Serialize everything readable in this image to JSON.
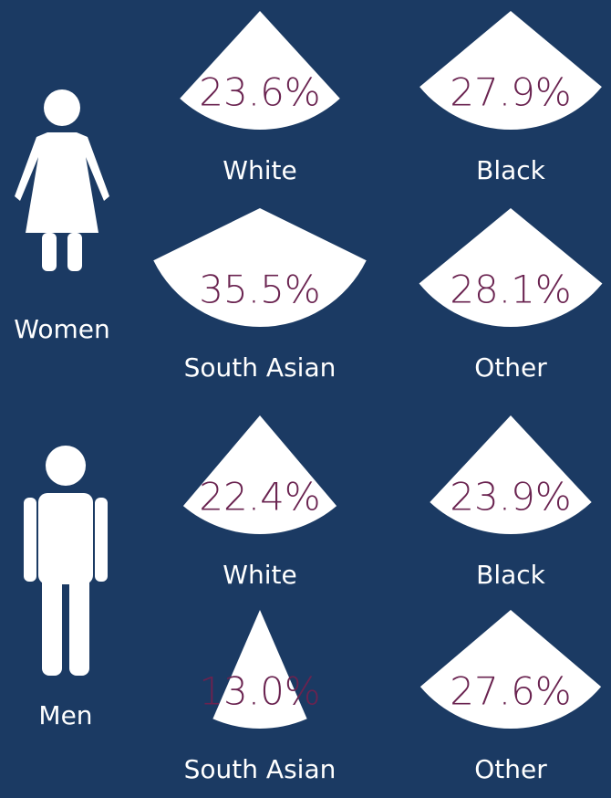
{
  "chart_data": {
    "type": "wedge",
    "groups": [
      {
        "name": "Women",
        "categories": [
          "White",
          "Black",
          "South Asian",
          "Other"
        ],
        "values": [
          23.6,
          27.9,
          35.5,
          28.1
        ],
        "value_labels": [
          "23.6%",
          "27.9%",
          "35.5%",
          "28.1%"
        ]
      },
      {
        "name": "Men",
        "categories": [
          "White",
          "Black",
          "South Asian",
          "Other"
        ],
        "values": [
          22.4,
          23.9,
          13.0,
          27.6
        ],
        "value_labels": [
          "22.4%",
          "23.9%",
          "13.0%",
          "27.6%"
        ]
      }
    ],
    "color": "#ffffff"
  }
}
